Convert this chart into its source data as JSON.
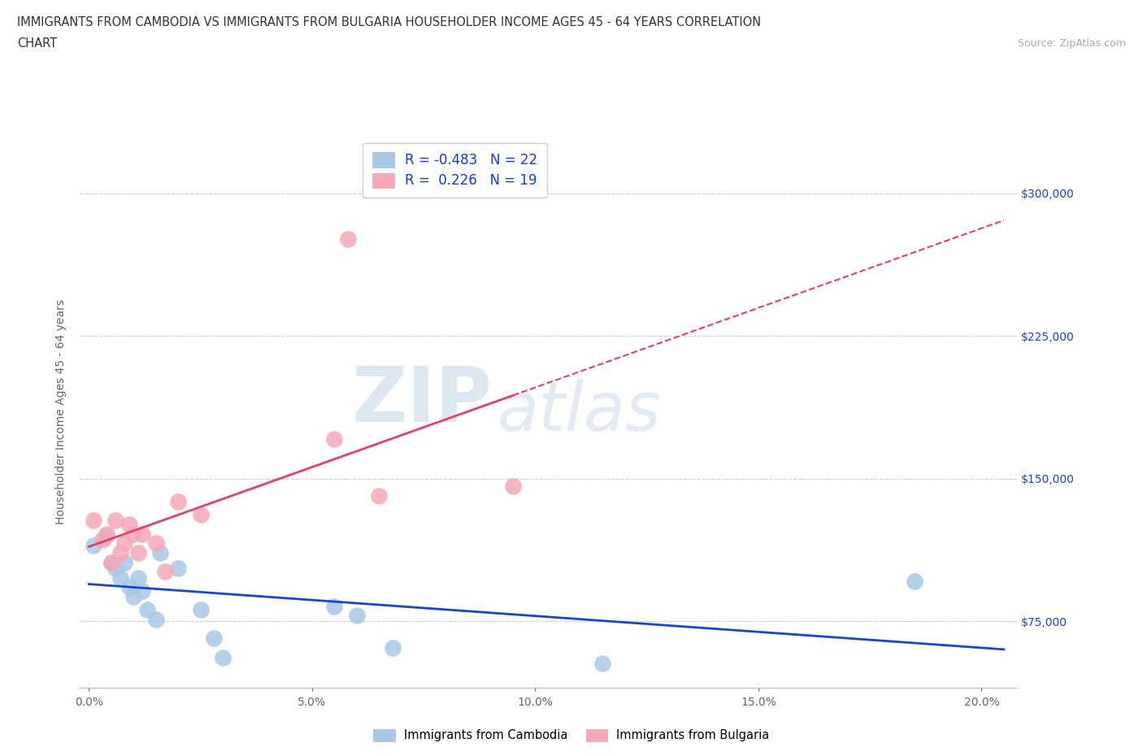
{
  "title_line1": "IMMIGRANTS FROM CAMBODIA VS IMMIGRANTS FROM BULGARIA HOUSEHOLDER INCOME AGES 45 - 64 YEARS CORRELATION",
  "title_line2": "CHART",
  "source_text": "Source: ZipAtlas.com",
  "ylabel": "Householder Income Ages 45 - 64 years",
  "watermark_left": "ZIP",
  "watermark_right": "atlas",
  "xlim": [
    -0.002,
    0.208
  ],
  "ylim": [
    40000,
    330000
  ],
  "xticks": [
    0.0,
    0.05,
    0.1,
    0.15,
    0.2
  ],
  "xtick_labels": [
    "0.0%",
    "5.0%",
    "10.0%",
    "15.0%",
    "20.0%"
  ],
  "yticks": [
    75000,
    150000,
    225000,
    300000
  ],
  "ytick_labels": [
    "$75,000",
    "$150,000",
    "$225,000",
    "$300,000"
  ],
  "r_cambodia": -0.483,
  "n_cambodia": 22,
  "r_bulgaria": 0.226,
  "n_bulgaria": 19,
  "color_cambodia": "#a8c8e8",
  "color_bulgaria": "#f4a8b8",
  "line_color_cambodia": "#1a44cc",
  "line_color_bulgaria": "#e04070",
  "legend_r_color": "#1a44cc",
  "background_color": "#ffffff",
  "grid_color": "#cccccc",
  "scatter_cambodia_x": [
    0.001,
    0.004,
    0.005,
    0.006,
    0.007,
    0.008,
    0.009,
    0.01,
    0.011,
    0.012,
    0.013,
    0.015,
    0.016,
    0.02,
    0.025,
    0.028,
    0.03,
    0.055,
    0.06,
    0.068,
    0.115,
    0.185
  ],
  "scatter_cambodia_y": [
    115000,
    120000,
    106000,
    103000,
    98000,
    106000,
    93000,
    88000,
    98000,
    91000,
    81000,
    76000,
    111000,
    103000,
    81000,
    66000,
    56000,
    83000,
    78000,
    61000,
    53000,
    96000
  ],
  "scatter_bulgaria_x": [
    0.001,
    0.003,
    0.004,
    0.005,
    0.006,
    0.007,
    0.008,
    0.009,
    0.01,
    0.011,
    0.012,
    0.015,
    0.017,
    0.02,
    0.025,
    0.055,
    0.058,
    0.065,
    0.095
  ],
  "scatter_bulgaria_y": [
    128000,
    118000,
    121000,
    106000,
    128000,
    111000,
    116000,
    126000,
    121000,
    111000,
    121000,
    116000,
    101000,
    138000,
    131000,
    171000,
    276000,
    141000,
    146000
  ]
}
